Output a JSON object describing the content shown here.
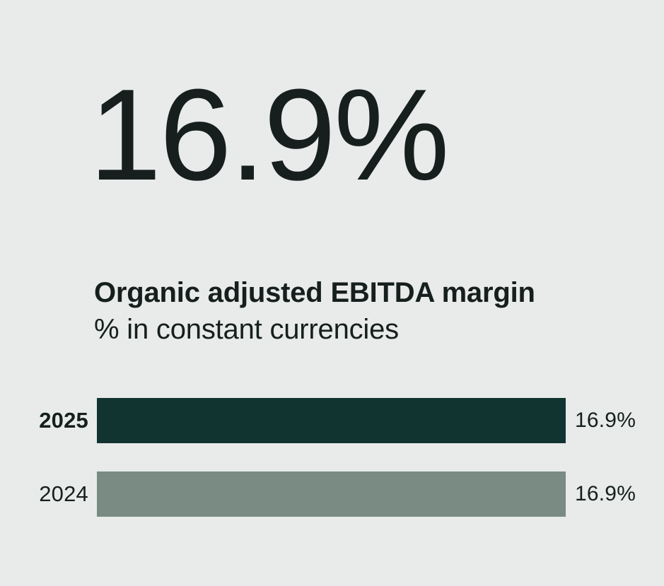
{
  "colors": {
    "background": "#E8EBEA",
    "text": "#161F1D",
    "bar_current": "#123430",
    "bar_prior": "#798B83"
  },
  "headline": {
    "value": "16.9%"
  },
  "subtitle": {
    "line1": "Organic adjusted EBITDA margin",
    "line2": "% in constant currencies"
  },
  "chart_data": {
    "type": "bar",
    "orientation": "horizontal",
    "title": "Organic adjusted EBITDA margin",
    "subtitle": "% in constant currencies",
    "headline_value": "16.9%",
    "categories": [
      "2025",
      "2024"
    ],
    "values": [
      16.9,
      16.9
    ],
    "value_labels": [
      "16.9%",
      "16.9%"
    ],
    "series_colors": [
      "#123430",
      "#798B83"
    ],
    "xlim": [
      0,
      16.9
    ],
    "xlabel": "",
    "ylabel": "",
    "grid": false,
    "legend": false
  }
}
